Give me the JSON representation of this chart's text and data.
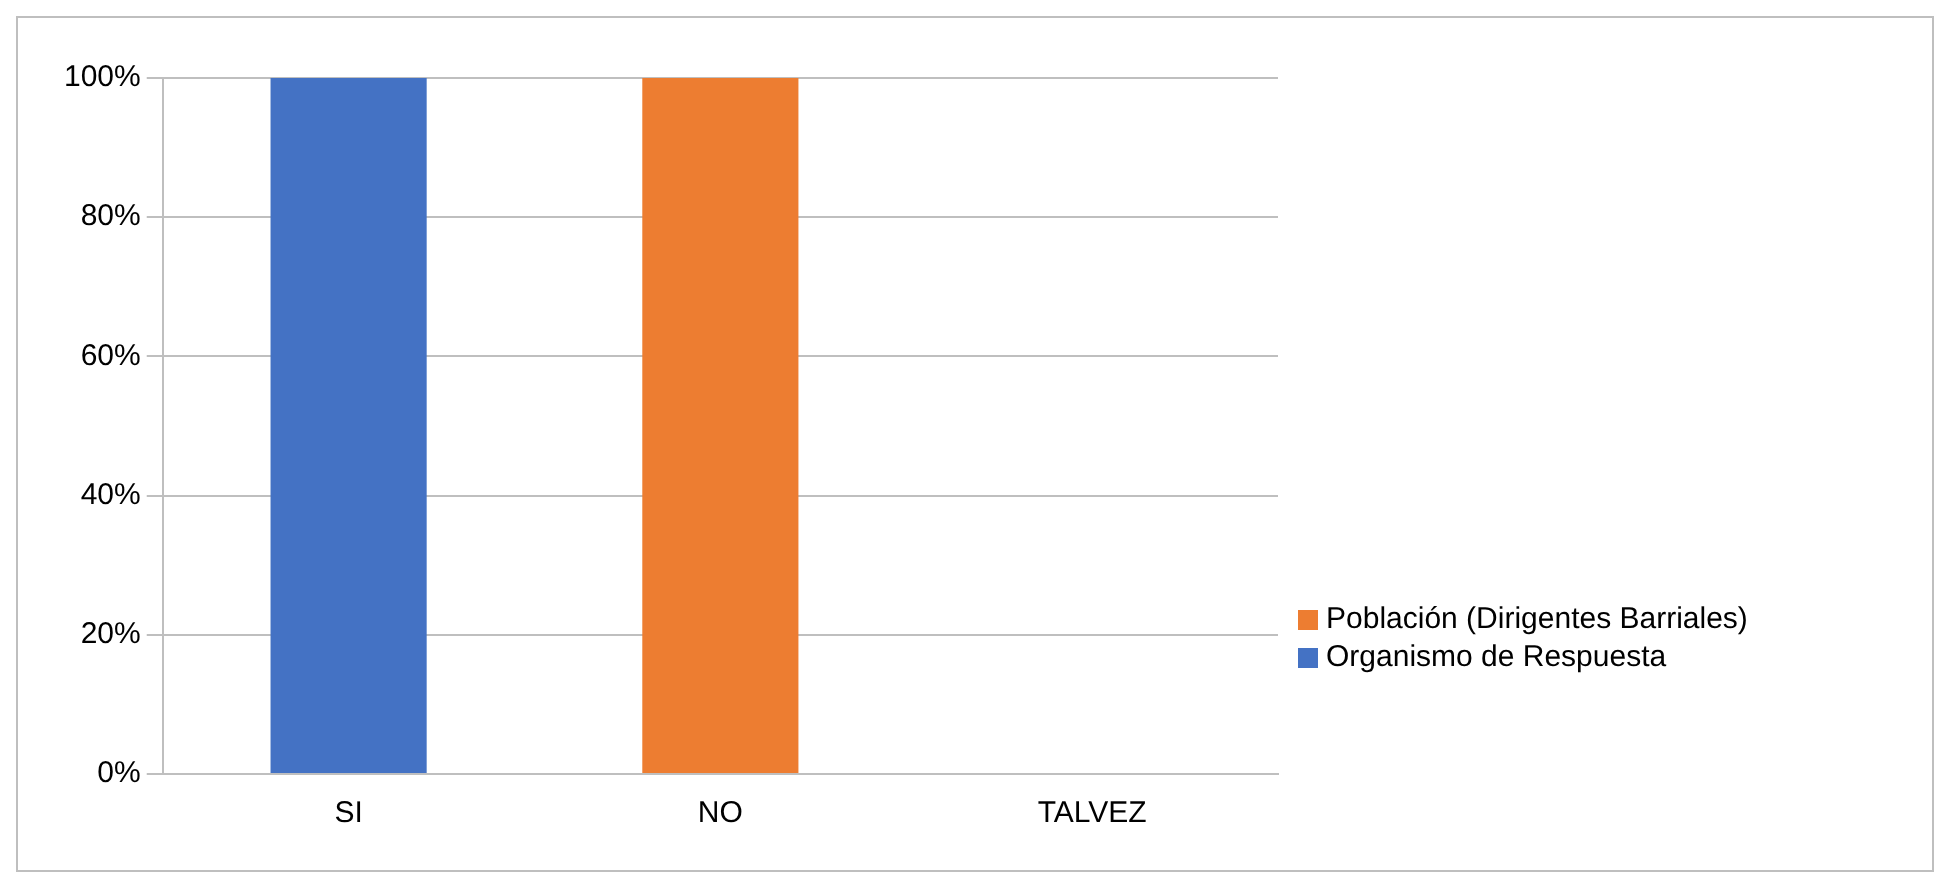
{
  "chart_data": {
    "type": "bar",
    "stacked": true,
    "categories": [
      "SI",
      "NO",
      "TALVEZ"
    ],
    "series": [
      {
        "name": "Organismo de Respuesta",
        "color": "#4472c4",
        "values": [
          100,
          0,
          0
        ]
      },
      {
        "name": "Población (Dirigentes Barriales)",
        "color": "#ed7d31",
        "values": [
          0,
          100,
          0
        ]
      }
    ],
    "ylim": [
      0,
      100
    ],
    "yticks": [
      {
        "value": 0,
        "label": "0%"
      },
      {
        "value": 20,
        "label": "20%"
      },
      {
        "value": 40,
        "label": "40%"
      },
      {
        "value": 60,
        "label": "60%"
      },
      {
        "value": 80,
        "label": "80%"
      },
      {
        "value": 100,
        "label": "100%"
      }
    ],
    "grid": "y",
    "legend": "right"
  }
}
